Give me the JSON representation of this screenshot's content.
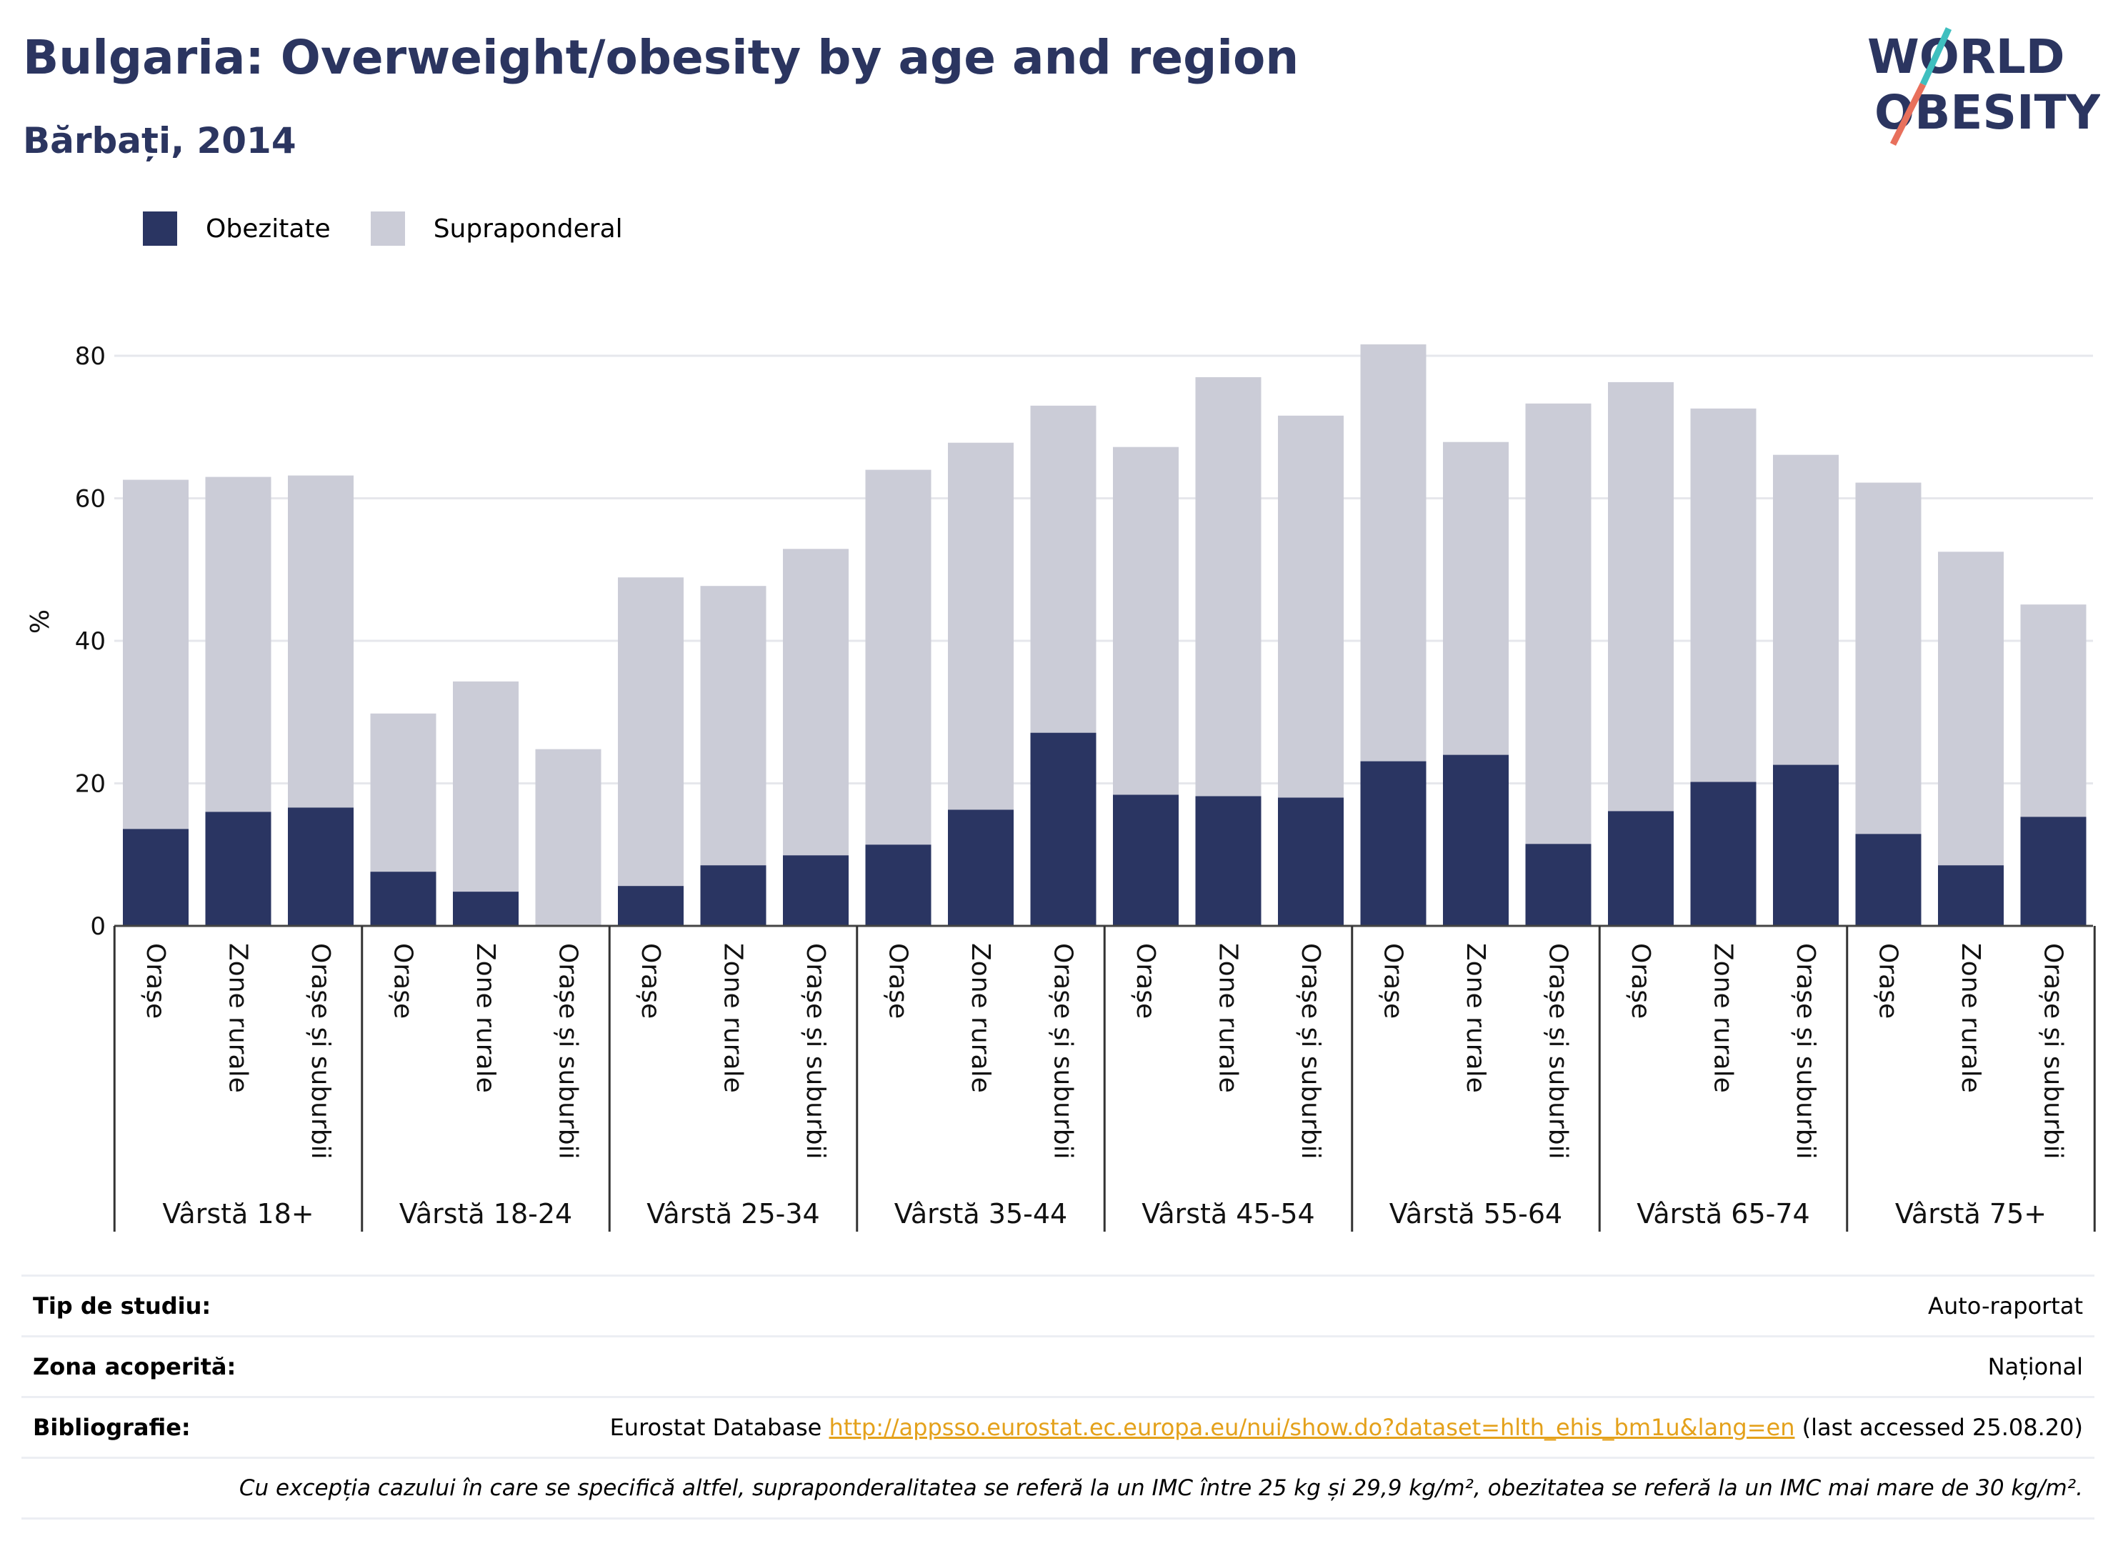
{
  "header": {
    "title": "Bulgaria: Overweight/obesity by age and region",
    "subtitle": "Bărbați, 2014",
    "logo_line1": "WORLD",
    "logo_line2": "OBESITY"
  },
  "legend": {
    "items": [
      {
        "label": "Obezitate",
        "color": "#2a3562"
      },
      {
        "label": "Supraponderal",
        "color": "#cbccd7"
      }
    ]
  },
  "chart_data": {
    "type": "bar",
    "stacked": true,
    "ylabel": "%",
    "ylim": [
      0,
      85
    ],
    "yticks": [
      0,
      20,
      40,
      60,
      80
    ],
    "grid": true,
    "legend_position": "top-left",
    "groups": [
      "Vârstă 18+",
      "Vârstă 18-24",
      "Vârstă 25-34",
      "Vârstă 35-44",
      "Vârstă 45-54",
      "Vârstă 55-64",
      "Vârstă 65-74",
      "Vârstă 75+"
    ],
    "subcategories": [
      "Orașe",
      "Zone rurale",
      "Orașe și suburbii"
    ],
    "series": [
      {
        "name": "Obezitate",
        "color": "#2a3562",
        "values": [
          13.6,
          16.0,
          16.6,
          7.6,
          4.8,
          0.0,
          5.6,
          8.5,
          9.9,
          11.4,
          16.3,
          27.1,
          18.4,
          18.2,
          18.0,
          23.1,
          24.0,
          11.5,
          16.1,
          20.2,
          22.6,
          12.9,
          8.5,
          15.3
        ]
      },
      {
        "name": "Supraponderal",
        "color": "#cbccd7",
        "values": [
          49.0,
          47.0,
          46.6,
          22.2,
          29.5,
          24.8,
          43.3,
          39.2,
          43.0,
          52.6,
          51.5,
          45.9,
          48.8,
          58.8,
          53.6,
          58.5,
          43.9,
          61.8,
          60.2,
          52.4,
          43.5,
          49.3,
          44.0,
          29.8
        ]
      }
    ]
  },
  "info": {
    "study_type_label": "Tip de studiu:",
    "study_type_value": "Auto-raportat",
    "coverage_label": "Zona acoperită:",
    "coverage_value": "Național",
    "bibliography_label": "Bibliografie:",
    "bibliography_prefix": "Eurostat Database",
    "bibliography_link": "http://appsso.eurostat.ec.europa.eu/nui/show.do?dataset=hlth_ehis_bm1u&lang=en",
    "bibliography_suffix": "(last accessed 25.08.20)",
    "note": "Cu excepția cazului în care se specifică altfel, supraponderalitatea se referă la un IMC între 25 kg și 29,9 kg/m², obezitatea se referă la un IMC mai mare de 30 kg/m²."
  }
}
